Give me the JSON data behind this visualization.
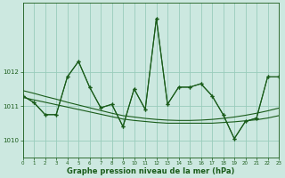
{
  "x": [
    0,
    1,
    2,
    3,
    4,
    5,
    6,
    7,
    8,
    9,
    10,
    11,
    12,
    13,
    14,
    15,
    16,
    17,
    18,
    19,
    20,
    21,
    22,
    23
  ],
  "line1": [
    1011.3,
    1011.1,
    1010.75,
    1010.75,
    1011.85,
    1012.3,
    1011.55,
    1010.95,
    1011.05,
    1010.4,
    1011.5,
    1010.9,
    1013.55,
    1011.05,
    1011.55,
    1011.55,
    1011.65,
    1011.3,
    1010.75,
    1010.05,
    1010.55,
    1010.65,
    1011.85,
    1011.85
  ],
  "line2": [
    1011.3,
    1011.1,
    1010.75,
    1010.75,
    1011.85,
    1012.3,
    1011.55,
    1010.95,
    1011.05,
    1010.4,
    1011.5,
    1010.9,
    1013.55,
    1011.05,
    1011.55,
    1011.55,
    1011.65,
    1011.3,
    1010.75,
    1010.05,
    1010.55,
    1010.65,
    1011.85,
    1011.85
  ],
  "trend1": [
    1011.25,
    1011.18,
    1011.11,
    1011.04,
    1010.97,
    1010.9,
    1010.83,
    1010.76,
    1010.69,
    1010.62,
    1010.58,
    1010.55,
    1010.52,
    1010.5,
    1010.5,
    1010.5,
    1010.5,
    1010.5,
    1010.52,
    1010.54,
    1010.57,
    1010.6,
    1010.65,
    1010.72
  ],
  "trend2": [
    1011.45,
    1011.37,
    1011.28,
    1011.2,
    1011.11,
    1011.03,
    1010.95,
    1010.87,
    1010.79,
    1010.72,
    1010.68,
    1010.64,
    1010.61,
    1010.59,
    1010.58,
    1010.58,
    1010.59,
    1010.61,
    1010.64,
    1010.68,
    1010.73,
    1010.79,
    1010.86,
    1010.94
  ],
  "bg_color": "#cce8e0",
  "grid_color": "#99ccbb",
  "line_color": "#1a5c1a",
  "ylabel_ticks": [
    1010,
    1011,
    1012
  ],
  "xlabel_label": "Graphe pression niveau de la mer (hPa)",
  "ylim": [
    1009.5,
    1014.0
  ],
  "xlim": [
    0,
    23
  ]
}
